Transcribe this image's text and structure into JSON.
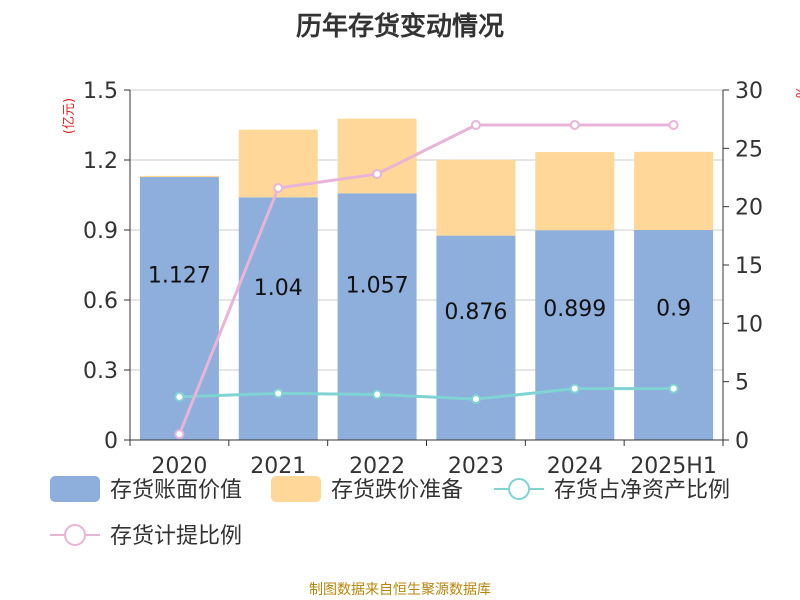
{
  "chart_data": {
    "type": "bar",
    "title": "历年存货变动情况",
    "categories": [
      "2020",
      "2021",
      "2022",
      "2023",
      "2024",
      "2025H1"
    ],
    "left_axis": {
      "label": "(亿元)",
      "ylim": [
        0,
        1.5
      ],
      "ticks": [
        "0",
        "0.3",
        "0.6",
        "0.9",
        "1.2",
        "1.5"
      ]
    },
    "right_axis": {
      "label": "%",
      "ylim": [
        0,
        30
      ],
      "ticks": [
        "0",
        "5",
        "10",
        "15",
        "20",
        "25",
        "30"
      ]
    },
    "series": [
      {
        "name": "存货账面价值",
        "kind": "bar",
        "axis": "left",
        "color": "#8eaedb",
        "values": [
          1.127,
          1.04,
          1.057,
          0.876,
          0.899,
          0.9
        ],
        "labels": [
          "1.127",
          "1.04",
          "1.057",
          "0.876",
          "0.899",
          "0.9"
        ]
      },
      {
        "name": "存货跌价准备",
        "kind": "bar",
        "axis": "left",
        "color": "#ffd899",
        "values": [
          0.005,
          0.29,
          0.32,
          0.325,
          0.335,
          0.335
        ]
      },
      {
        "name": "存货占净资产比例",
        "kind": "line",
        "axis": "right",
        "color": "#7fd3d3",
        "values": [
          3.7,
          4.0,
          3.9,
          3.5,
          4.4,
          4.4
        ]
      },
      {
        "name": "存货计提比例",
        "kind": "line",
        "axis": "right",
        "color": "#e8b4d8",
        "values": [
          0.5,
          21.6,
          22.8,
          27.0,
          27.0,
          27.0
        ]
      }
    ],
    "grid": true,
    "legend": "bottom"
  },
  "source": "制图数据来自恒生聚源数据库"
}
